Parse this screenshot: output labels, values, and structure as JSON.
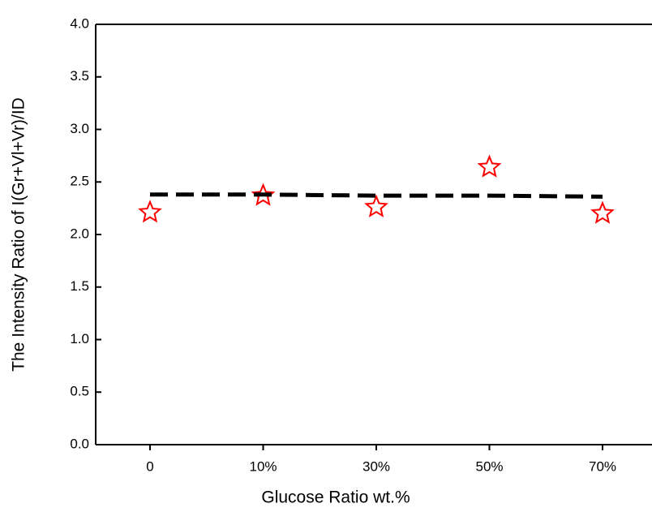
{
  "chart_data": {
    "type": "scatter",
    "x_label": "Glucose Ratio wt.%",
    "y_label": "The Intensity Ratio of  I(Gr+Vl+Vr)/ID",
    "categories": [
      "0",
      "10%",
      "30%",
      "50%",
      "70%"
    ],
    "series": [
      {
        "color": "#ff0000",
        "marker": "star",
        "values": [
          2.21,
          2.37,
          2.26,
          2.64,
          2.2
        ]
      },
      {
        "color": "#000000",
        "line": "dashed",
        "values": [
          2.38,
          2.38,
          2.37,
          2.37,
          2.36
        ]
      }
    ],
    "ylim": [
      0,
      4
    ],
    "yticks": [
      {
        "value": 0,
        "label": "0.0"
      },
      0.5,
      {
        "value": 1,
        "label": "1.0"
      },
      1.5,
      {
        "value": 2,
        "label": "2.0"
      },
      2.5,
      {
        "value": 3,
        "label": "3.0"
      },
      3.5,
      {
        "value": 4,
        "label": "4.0"
      }
    ]
  }
}
